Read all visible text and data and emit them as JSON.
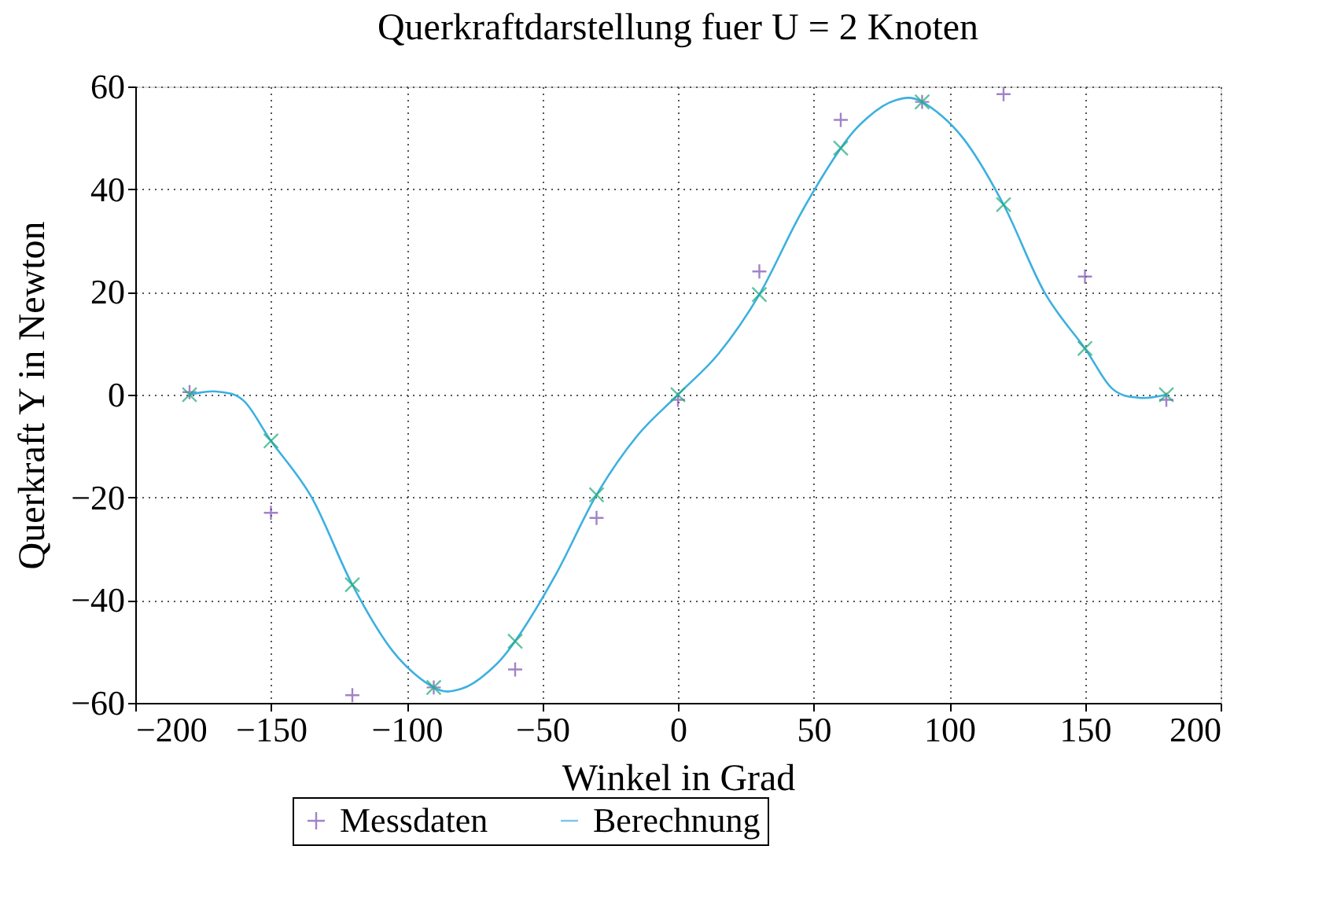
{
  "chart_data": {
    "type": "scatter",
    "title": "Querkraftdarstellung fuer U = 2 Knoten",
    "xlabel": "Winkel in Grad",
    "ylabel": "Querkraft Y in Newton",
    "xlim": [
      -200,
      200
    ],
    "xticks": [
      -200,
      -150,
      -100,
      -50,
      0,
      50,
      100,
      150,
      200
    ],
    "ylim": [
      -60,
      60
    ],
    "yticks": [
      -60,
      -40,
      -20,
      0,
      20,
      40,
      60
    ],
    "grid": true,
    "legend": "bottom",
    "series": [
      {
        "name": "Messdaten",
        "marker": "cross",
        "color": "#7b4fb0",
        "x": [
          -180,
          -150,
          -120,
          -90,
          -60,
          -30,
          0,
          30,
          60,
          90,
          120,
          150,
          180
        ],
        "values": [
          0.5,
          -23,
          -58.5,
          -57,
          -53.5,
          -24,
          -1,
          24,
          53.5,
          57,
          58.5,
          23,
          -1
        ]
      },
      {
        "name": "Berechnung",
        "type": "line",
        "marker": "none",
        "line_style": "solid",
        "color": "#3cb0e0",
        "x": [
          -180,
          -170,
          -160,
          -150,
          -135,
          -120,
          -105,
          -90,
          -80,
          -70,
          -60,
          -45,
          -30,
          -15,
          0,
          15,
          30,
          45,
          60,
          70,
          80,
          90,
          105,
          120,
          135,
          150,
          160,
          170,
          180
        ],
        "values": [
          0,
          0.6,
          -1.2,
          -9,
          -20,
          -37,
          -50,
          -57,
          -57.3,
          -54,
          -48,
          -35,
          -19.5,
          -8,
          0,
          8,
          19.5,
          35,
          48,
          54,
          57.3,
          57,
          50,
          37,
          20,
          9,
          1.2,
          -0.6,
          0
        ]
      },
      {
        "marker": "x",
        "color": "#1faa7a",
        "x": [
          -180,
          -150,
          -120,
          -90,
          -60,
          -30,
          0,
          30,
          60,
          90,
          120,
          150,
          180
        ],
        "values": [
          0,
          -9,
          -37,
          -57,
          -48,
          -19.5,
          0,
          19.5,
          48,
          57,
          37,
          9,
          0
        ]
      }
    ]
  }
}
